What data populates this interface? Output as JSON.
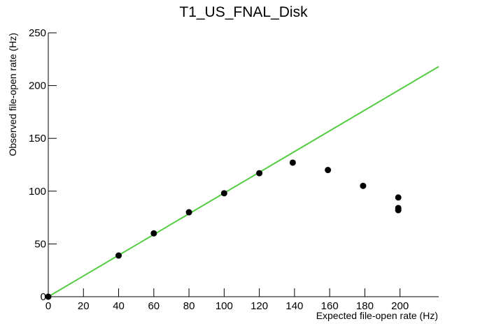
{
  "chart_data": {
    "type": "scatter",
    "title": "T1_US_FNAL_Disk",
    "x_label": "Expected file-open rate (Hz)",
    "y_label": "Observed file-open rate (Hz)",
    "x": [
      0,
      40,
      60,
      80,
      100,
      120,
      139,
      159,
      179,
      199,
      199,
      199
    ],
    "values": [
      0,
      39,
      60,
      80,
      98,
      117,
      127,
      120,
      105,
      94,
      84,
      82
    ],
    "color": "#000000",
    "line": {
      "x": [
        0,
        222
      ],
      "values": [
        0,
        218
      ],
      "color": "#55cc44"
    },
    "xlim": [
      0,
      222
    ],
    "xticks": [
      0,
      20,
      40,
      60,
      80,
      100,
      120,
      140,
      160,
      180,
      200
    ],
    "ylim": [
      0,
      250
    ],
    "yticks": [
      0,
      50,
      100,
      150,
      200,
      250
    ]
  }
}
